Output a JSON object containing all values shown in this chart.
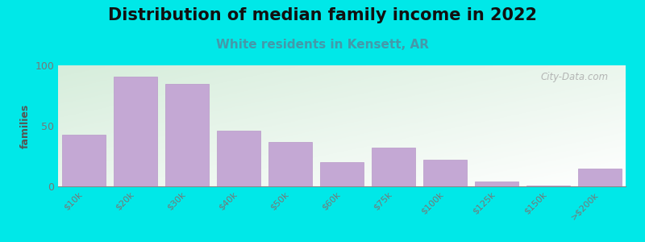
{
  "title": "Distribution of median family income in 2022",
  "subtitle": "White residents in Kensett, AR",
  "ylabel": "families",
  "categories": [
    "$10k",
    "$20k",
    "$30k",
    "$40k",
    "$50k",
    "$60k",
    "$75k",
    "$100k",
    "$125k",
    "$150k",
    ">$200k"
  ],
  "values": [
    43,
    91,
    85,
    46,
    37,
    20,
    32,
    22,
    4,
    1,
    15
  ],
  "ylim": [
    0,
    100
  ],
  "yticks": [
    0,
    50,
    100
  ],
  "bar_color": "#c4a8d4",
  "bar_edge_color": "#b898c8",
  "background_outer": "#00e8e8",
  "bg_top_left": "#d8eedd",
  "bg_bottom_right": "#f8fef8",
  "title_fontsize": 15,
  "subtitle_fontsize": 11,
  "subtitle_color": "#4499aa",
  "ylabel_fontsize": 9,
  "ylabel_color": "#555555",
  "watermark_text": "City-Data.com",
  "watermark_color": "#aaaaaa",
  "tick_color": "#777777",
  "tick_fontsize": 8
}
